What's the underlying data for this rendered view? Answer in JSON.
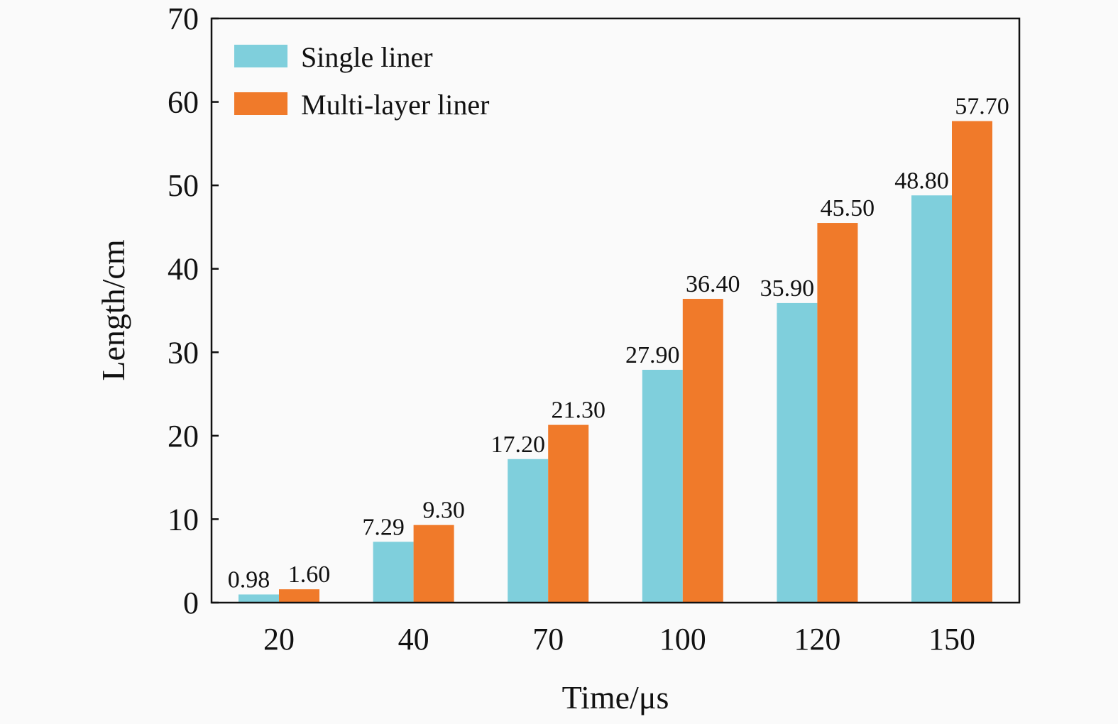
{
  "chart_data": {
    "type": "bar",
    "title": "",
    "xlabel": "Time/μs",
    "ylabel": "Length/cm",
    "ylim": [
      0,
      70
    ],
    "yticks": [
      0,
      10,
      20,
      30,
      40,
      50,
      60,
      70
    ],
    "categories": [
      "20",
      "40",
      "70",
      "100",
      "120",
      "150"
    ],
    "series": [
      {
        "name": "Single liner",
        "color": "#7fcfdc",
        "values": [
          0.98,
          7.29,
          17.2,
          27.9,
          35.9,
          48.8
        ],
        "labels": [
          "0.98",
          "7.29",
          "17.20",
          "27.90",
          "35.90",
          "48.80"
        ]
      },
      {
        "name": "Multi-layer liner",
        "color": "#f07a2a",
        "values": [
          1.6,
          9.3,
          21.3,
          36.4,
          45.5,
          57.7
        ],
        "labels": [
          "1.60",
          "9.30",
          "21.30",
          "36.40",
          "45.50",
          "57.70"
        ]
      }
    ],
    "grid": false,
    "legend": "top-left"
  }
}
